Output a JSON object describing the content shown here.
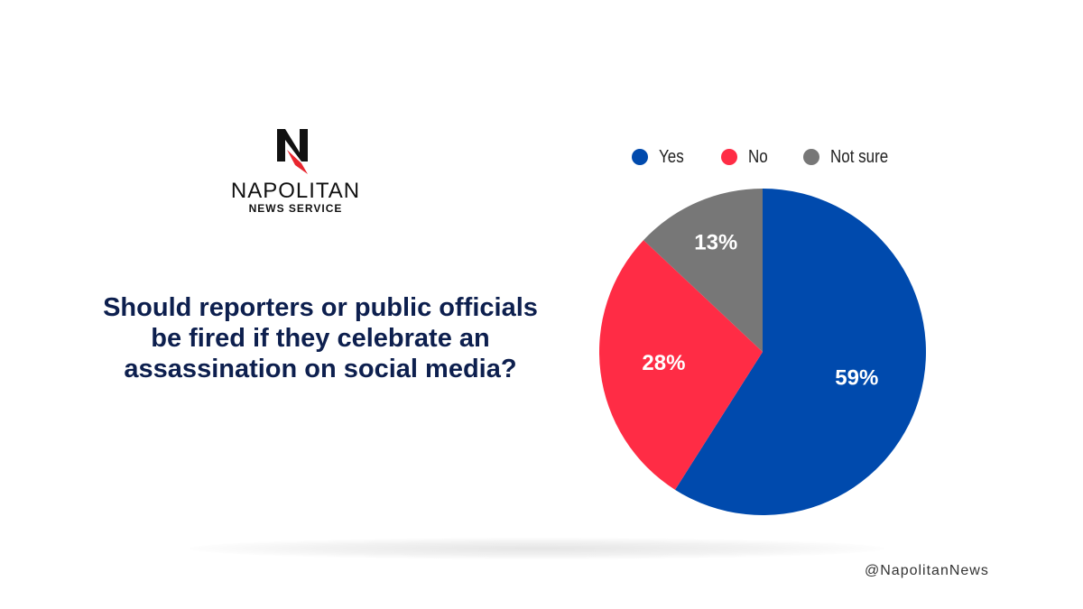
{
  "brand": {
    "name": "NAPOLITAN",
    "subtitle": "NEWS SERVICE",
    "logo_icon": "napolitan-n-bird-icon",
    "handle": "@NapolitanNews"
  },
  "question": "Should reporters or public officials be fired if they celebrate an assassination on social media?",
  "chart_data": {
    "type": "pie",
    "title": "",
    "legend_position": "top",
    "categories": [
      "Yes",
      "No",
      "Not sure"
    ],
    "values": [
      59,
      28,
      13
    ],
    "labels": [
      "59%",
      "28%",
      "13%"
    ],
    "colors": [
      "#004aad",
      "#ff2c45",
      "#777777"
    ]
  }
}
